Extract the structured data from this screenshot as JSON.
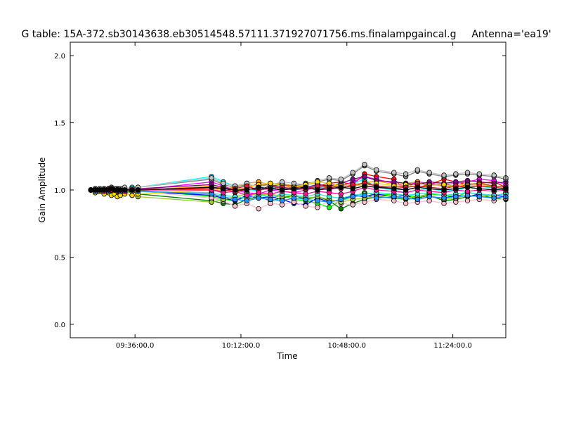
{
  "chart_data": {
    "type": "line",
    "title": "G table: 15A-372.sb30143638.eb30514548.57111.371927071756.ms.finalampgaincal.g",
    "antenna_label": "Antenna='ea19'",
    "xlabel": "Time",
    "ylabel": "Gain Amplitude",
    "xlim": [
      "09:14:00",
      "11:42:00"
    ],
    "ylim": [
      -0.1,
      2.1
    ],
    "x_ticks": [
      "09:36:00.0",
      "10:12:00.0",
      "10:48:00.0",
      "11:24:00.0"
    ],
    "y_ticks": [
      "0.0",
      "0.5",
      "1.0",
      "1.5",
      "2.0"
    ],
    "grid": false,
    "legend": "none",
    "time_samples": [
      "09:21:00",
      "09:22:30",
      "09:24:00",
      "09:25:30",
      "09:27:00",
      "09:28:00",
      "09:29:00",
      "09:30:00",
      "09:31:00",
      "09:32:30",
      "09:35:00",
      "09:37:00",
      "10:02:00",
      "10:06:00",
      "10:10:00",
      "10:14:00",
      "10:18:00",
      "10:22:00",
      "10:26:00",
      "10:30:00",
      "10:34:00",
      "10:38:00",
      "10:42:00",
      "10:46:00",
      "10:50:00",
      "10:54:00",
      "10:58:00",
      "11:04:00",
      "11:08:00",
      "11:12:00",
      "11:16:00",
      "11:21:00",
      "11:25:00",
      "11:29:00",
      "11:33:00",
      "11:38:00",
      "11:42:00"
    ],
    "series": [
      {
        "color": "#ff0000",
        "values": [
          1.0,
          0.99,
          1.0,
          0.98,
          1.01,
          1.02,
          1.01,
          1.0,
          0.99,
          1.0,
          1.01,
          1.0,
          1.01,
          1.02,
          0.98,
          1.01,
          1.05,
          1.03,
          1.04,
          1.02,
          1.01,
          1.03,
          1.05,
          1.06,
          1.04,
          1.12,
          1.1,
          1.08,
          1.0,
          1.02,
          1.04,
          1.08,
          1.06,
          1.04,
          1.05,
          1.06,
          1.02
        ]
      },
      {
        "color": "#00ff00",
        "values": [
          1.0,
          1.0,
          1.01,
          0.99,
          1.0,
          1.01,
          1.0,
          0.99,
          1.0,
          0.98,
          0.99,
          1.0,
          0.95,
          0.93,
          0.92,
          0.95,
          0.98,
          0.94,
          0.96,
          0.93,
          0.92,
          0.9,
          0.87,
          0.92,
          0.95,
          0.98,
          0.96,
          0.97,
          0.96,
          0.95,
          0.97,
          0.96,
          0.95,
          0.98,
          0.97,
          0.95,
          0.98
        ]
      },
      {
        "color": "#0000ff",
        "values": [
          1.0,
          1.01,
          0.99,
          1.0,
          0.98,
          0.99,
          1.0,
          1.01,
          1.0,
          0.99,
          1.0,
          0.99,
          0.96,
          0.94,
          0.92,
          0.96,
          0.94,
          0.95,
          0.93,
          0.9,
          0.89,
          0.94,
          0.91,
          0.93,
          0.96,
          0.95,
          0.97,
          0.95,
          0.96,
          0.93,
          0.95,
          0.94,
          0.96,
          0.95,
          0.97,
          0.96,
          0.95
        ]
      },
      {
        "color": "#00ffff",
        "values": [
          1.0,
          0.99,
          1.0,
          1.0,
          1.01,
          1.0,
          0.99,
          1.0,
          1.01,
          1.0,
          1.02,
          1.02,
          1.1,
          1.06,
          1.03,
          0.99,
          1.0,
          1.02,
          1.01,
          1.0,
          1.03,
          1.02,
          1.01,
          1.04,
          1.05,
          1.08,
          1.02,
          1.0,
          0.98,
          1.0,
          1.01,
          0.99,
          1.0,
          1.02,
          1.03,
          1.01,
          1.0
        ]
      },
      {
        "color": "#ff00ff",
        "values": [
          1.0,
          1.0,
          0.99,
          1.01,
          1.0,
          0.99,
          1.01,
          1.0,
          0.99,
          1.0,
          1.0,
          1.0,
          1.06,
          1.03,
          1.0,
          0.98,
          0.97,
          1.0,
          0.99,
          0.98,
          1.0,
          1.02,
          1.0,
          1.03,
          1.06,
          1.1,
          1.08,
          1.05,
          1.03,
          1.06,
          1.05,
          1.04,
          1.05,
          1.06,
          1.08,
          1.07,
          1.04
        ]
      },
      {
        "color": "#ffa500",
        "values": [
          1.0,
          1.0,
          1.0,
          1.0,
          0.99,
          1.0,
          1.0,
          1.01,
          1.0,
          1.0,
          1.0,
          1.0,
          1.03,
          1.01,
          1.02,
          1.05,
          1.06,
          1.04,
          1.05,
          1.03,
          1.04,
          1.05,
          1.02,
          1.04,
          1.03,
          1.05,
          1.07,
          1.04,
          1.05,
          1.06,
          1.03,
          1.04,
          1.03,
          1.05,
          1.04,
          1.03,
          1.02
        ]
      },
      {
        "color": "#008000",
        "values": [
          1.0,
          0.98,
          1.0,
          0.99,
          1.0,
          0.99,
          1.0,
          0.98,
          0.99,
          0.98,
          0.99,
          0.97,
          0.92,
          0.9,
          0.89,
          0.93,
          0.95,
          0.92,
          0.94,
          0.96,
          0.93,
          0.95,
          0.92,
          0.86,
          0.9,
          0.93,
          0.95,
          0.94,
          0.93,
          0.94,
          0.96,
          0.92,
          0.93,
          0.95,
          0.96,
          0.94,
          0.93
        ]
      },
      {
        "color": "#800080",
        "values": [
          1.0,
          1.0,
          1.01,
          1.0,
          0.99,
          1.0,
          1.01,
          1.0,
          1.0,
          1.01,
          1.0,
          1.01,
          1.04,
          1.02,
          1.0,
          1.01,
          1.0,
          1.03,
          1.02,
          1.01,
          1.02,
          1.04,
          1.03,
          1.05,
          1.08,
          1.1,
          1.07,
          1.06,
          1.05,
          1.04,
          1.06,
          1.05,
          1.06,
          1.07,
          1.06,
          1.05,
          1.06
        ]
      },
      {
        "color": "#a0522d",
        "values": [
          1.0,
          0.99,
          1.0,
          1.0,
          1.0,
          1.01,
          0.99,
          1.0,
          1.0,
          1.0,
          1.0,
          1.0,
          1.02,
          1.0,
          0.99,
          1.02,
          1.04,
          1.03,
          1.01,
          1.02,
          1.03,
          1.01,
          1.02,
          1.03,
          1.02,
          1.06,
          1.03,
          1.02,
          1.03,
          1.05,
          1.04,
          1.03,
          1.02,
          1.04,
          1.05,
          1.03,
          1.02
        ]
      },
      {
        "color": "#ffc0cb",
        "values": [
          1.0,
          1.0,
          0.99,
          1.0,
          1.0,
          0.99,
          1.0,
          1.0,
          0.99,
          1.0,
          0.99,
          0.99,
          0.94,
          0.92,
          0.88,
          0.9,
          0.86,
          0.9,
          0.89,
          0.91,
          0.88,
          0.87,
          0.92,
          0.9,
          0.89,
          0.91,
          0.93,
          0.92,
          0.9,
          0.91,
          0.92,
          0.9,
          0.91,
          0.92,
          0.93,
          0.92,
          0.94
        ]
      },
      {
        "color": "#808080",
        "values": [
          1.0,
          1.01,
          1.0,
          1.01,
          1.0,
          1.02,
          1.0,
          1.01,
          1.0,
          1.01,
          1.01,
          1.02,
          1.08,
          1.04,
          1.02,
          1.04,
          1.03,
          1.05,
          1.04,
          1.03,
          1.05,
          1.06,
          1.08,
          1.07,
          1.12,
          1.18,
          1.14,
          1.12,
          1.1,
          1.14,
          1.12,
          1.1,
          1.11,
          1.12,
          1.11,
          1.1,
          1.08
        ]
      },
      {
        "color": "#c0c0c0",
        "values": [
          1.0,
          1.0,
          1.01,
          1.0,
          1.01,
          1.0,
          1.01,
          1.0,
          1.01,
          1.02,
          1.01,
          1.02,
          1.09,
          1.05,
          1.03,
          1.05,
          1.02,
          1.04,
          1.06,
          1.05,
          1.04,
          1.07,
          1.09,
          1.08,
          1.13,
          1.19,
          1.15,
          1.13,
          1.12,
          1.15,
          1.13,
          1.11,
          1.12,
          1.13,
          1.12,
          1.11,
          1.09
        ]
      },
      {
        "color": "#9acd32",
        "values": [
          1.0,
          1.0,
          0.99,
          0.99,
          1.0,
          1.0,
          0.99,
          1.0,
          0.99,
          0.98,
          0.96,
          0.95,
          0.91,
          0.93,
          0.95,
          0.97,
          0.96,
          0.97,
          0.95,
          0.96,
          0.94,
          0.95,
          0.93,
          0.91,
          0.93,
          0.94,
          0.95,
          0.96,
          0.94,
          0.95,
          0.96,
          0.93,
          0.94,
          0.96,
          0.95,
          0.96,
          0.97
        ]
      },
      {
        "color": "#40e0d0",
        "values": [
          1.0,
          0.99,
          1.0,
          0.99,
          1.0,
          1.0,
          0.99,
          1.0,
          1.0,
          0.99,
          1.0,
          0.99,
          0.98,
          0.96,
          0.95,
          0.94,
          0.96,
          0.95,
          0.97,
          0.96,
          0.95,
          0.97,
          0.95,
          0.94,
          0.96,
          0.97,
          0.98,
          0.97,
          0.96,
          0.97,
          0.98,
          0.96,
          0.97,
          0.98,
          0.97,
          0.96,
          0.97
        ]
      },
      {
        "color": "#ffd700",
        "values": [
          1.0,
          0.98,
          0.99,
          0.97,
          0.98,
          0.96,
          0.97,
          0.95,
          0.96,
          0.97,
          0.96,
          0.97,
          1.0,
          1.01,
          1.0,
          1.02,
          1.04,
          1.05,
          1.03,
          1.02,
          1.04,
          1.06,
          1.05,
          1.03,
          1.04,
          1.03,
          1.05,
          1.03,
          1.04,
          1.02,
          1.03,
          1.04,
          1.02,
          1.03,
          1.04,
          1.02,
          1.01
        ]
      },
      {
        "color": "#dc143c",
        "values": [
          1.0,
          1.0,
          1.0,
          1.0,
          1.01,
          1.0,
          1.0,
          0.99,
          1.0,
          1.0,
          1.0,
          1.0,
          1.0,
          0.99,
          1.01,
          1.03,
          1.0,
          1.01,
          1.02,
          1.0,
          1.01,
          1.03,
          1.02,
          1.01,
          1.04,
          1.05,
          1.03,
          1.01,
          1.02,
          1.03,
          1.02,
          1.01,
          1.03,
          1.02,
          1.03,
          1.02,
          1.01
        ]
      },
      {
        "color": "#1e90ff",
        "values": [
          1.0,
          0.99,
          1.0,
          1.0,
          0.99,
          1.0,
          1.0,
          1.0,
          0.99,
          1.0,
          1.0,
          0.99,
          0.97,
          0.95,
          0.93,
          0.92,
          0.94,
          0.93,
          0.92,
          0.94,
          0.93,
          0.92,
          0.91,
          0.93,
          0.95,
          0.96,
          0.94,
          0.95,
          0.94,
          0.93,
          0.95,
          0.94,
          0.95,
          0.96,
          0.95,
          0.94,
          0.95
        ]
      },
      {
        "color": "#ff1493",
        "values": [
          1.0,
          1.0,
          1.0,
          0.99,
          1.0,
          1.0,
          1.0,
          1.0,
          1.0,
          0.99,
          1.0,
          1.0,
          1.0,
          0.98,
          0.99,
          0.96,
          0.98,
          0.97,
          0.99,
          0.98,
          0.97,
          0.99,
          0.98,
          0.97,
          0.99,
          1.02,
          1.0,
          0.99,
          0.98,
          1.0,
          0.99,
          0.98,
          1.0,
          0.99,
          1.0,
          0.99,
          1.0
        ]
      },
      {
        "color": "#000000",
        "values": [
          1.0,
          1.0,
          1.0,
          1.0,
          1.0,
          1.01,
          1.0,
          1.0,
          1.0,
          1.0,
          1.0,
          1.0,
          1.02,
          1.01,
          1.0,
          1.0,
          1.02,
          1.01,
          1.0,
          1.01,
          1.02,
          1.0,
          1.01,
          1.02,
          1.01,
          1.03,
          1.02,
          1.01,
          1.0,
          1.02,
          1.01,
          1.0,
          1.01,
          1.02,
          1.01,
          1.0,
          1.01
        ]
      }
    ]
  }
}
